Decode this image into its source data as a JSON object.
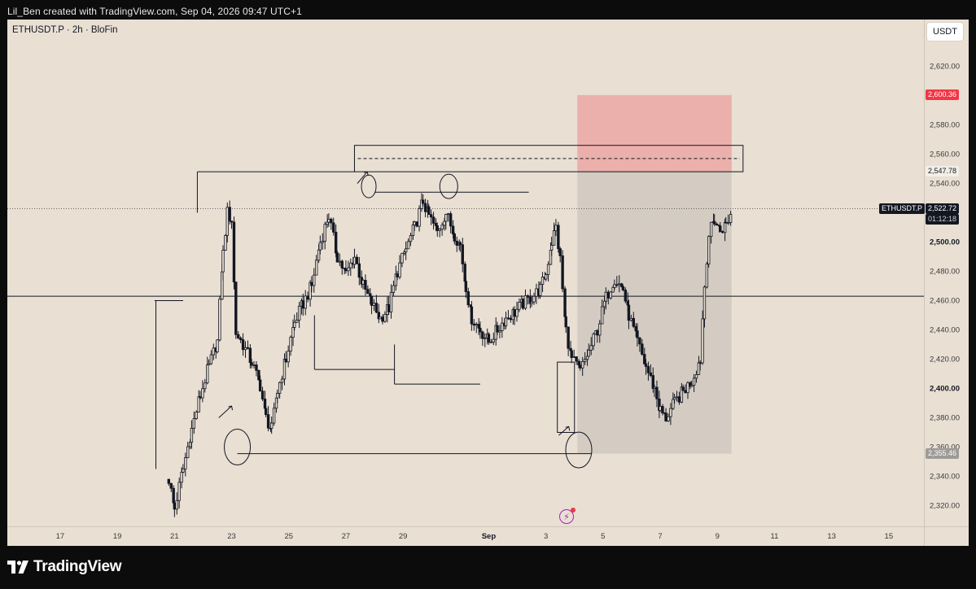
{
  "caption": "Lil_Ben created with TradingView.com, Sep 04, 2026 09:47 UTC+1",
  "symbol": "ETHUSDT.P · 2h · BloFin",
  "currency": "USDT",
  "brand": "TradingView",
  "colors": {
    "background": "#e9dfd3",
    "candle": "#131722",
    "stop_zone": "#f23645",
    "target_zone": "#9e9b97"
  },
  "icons": [
    "tradingview-logo-icon",
    "flash-icon"
  ],
  "chart_data": {
    "type": "candlestick",
    "title": "ETHUSDT.P · 2h · BloFin",
    "ylim": [
      2310,
      2642
    ],
    "y_ticks": [
      {
        "value": 2620,
        "label": "2,620.00"
      },
      {
        "value": 2580,
        "label": "2,580.00"
      },
      {
        "value": 2560,
        "label": "2,560.00"
      },
      {
        "value": 2540,
        "label": "2,540.00"
      },
      {
        "value": 2500,
        "label": "2,500.00",
        "bold": true
      },
      {
        "value": 2480,
        "label": "2,480.00"
      },
      {
        "value": 2460,
        "label": "2,460.00"
      },
      {
        "value": 2440,
        "label": "2,440.00"
      },
      {
        "value": 2420,
        "label": "2,420.00"
      },
      {
        "value": 2400,
        "label": "2,400.00",
        "bold": true
      },
      {
        "value": 2380,
        "label": "2,380.00"
      },
      {
        "value": 2360,
        "label": "2,360.00"
      },
      {
        "value": 2340,
        "label": "2,340.00"
      },
      {
        "value": 2320,
        "label": "2,320.00"
      }
    ],
    "x_ticks": [
      {
        "label": "17",
        "day": 17
      },
      {
        "label": "19",
        "day": 19
      },
      {
        "label": "21",
        "day": 21
      },
      {
        "label": "23",
        "day": 23
      },
      {
        "label": "25",
        "day": 25
      },
      {
        "label": "27",
        "day": 27
      },
      {
        "label": "29",
        "day": 29
      },
      {
        "label": "Sep",
        "day": 32,
        "bold": true
      },
      {
        "label": "3",
        "day": 34
      },
      {
        "label": "5",
        "day": 36
      },
      {
        "label": "7",
        "day": 38
      },
      {
        "label": "9",
        "day": 40
      },
      {
        "label": "11",
        "day": 42
      },
      {
        "label": "13",
        "day": 44
      },
      {
        "label": "15",
        "day": 46
      }
    ],
    "price_tags": {
      "stop": "2,600.36",
      "entry": "2,547.78",
      "target": "2,355.46",
      "last_symbol": "ETHUSDT.P",
      "last_price": "2,522.72",
      "countdown": "01:12:18"
    },
    "close_path": [
      [
        20.8,
        2338
      ],
      [
        21.0,
        2318
      ],
      [
        21.3,
        2345
      ],
      [
        21.6,
        2372
      ],
      [
        21.9,
        2395
      ],
      [
        22.2,
        2415
      ],
      [
        22.5,
        2432
      ],
      [
        22.7,
        2492
      ],
      [
        22.85,
        2520
      ],
      [
        23.0,
        2515
      ],
      [
        23.15,
        2438
      ],
      [
        23.4,
        2430
      ],
      [
        23.7,
        2418
      ],
      [
        24.0,
        2402
      ],
      [
        24.2,
        2380
      ],
      [
        24.4,
        2372
      ],
      [
        24.6,
        2398
      ],
      [
        24.9,
        2420
      ],
      [
        25.2,
        2445
      ],
      [
        25.5,
        2458
      ],
      [
        25.8,
        2470
      ],
      [
        26.1,
        2500
      ],
      [
        26.4,
        2518
      ],
      [
        26.7,
        2490
      ],
      [
        27.0,
        2478
      ],
      [
        27.3,
        2490
      ],
      [
        27.6,
        2470
      ],
      [
        27.9,
        2458
      ],
      [
        28.2,
        2448
      ],
      [
        28.5,
        2455
      ],
      [
        28.8,
        2480
      ],
      [
        29.1,
        2495
      ],
      [
        29.4,
        2510
      ],
      [
        29.7,
        2528
      ],
      [
        29.9,
        2518
      ],
      [
        30.2,
        2507
      ],
      [
        30.5,
        2520
      ],
      [
        30.8,
        2505
      ],
      [
        31.0,
        2498
      ],
      [
        31.2,
        2470
      ],
      [
        31.4,
        2448
      ],
      [
        31.7,
        2440
      ],
      [
        32.0,
        2432
      ],
      [
        32.3,
        2440
      ],
      [
        32.6,
        2448
      ],
      [
        32.9,
        2452
      ],
      [
        33.2,
        2458
      ],
      [
        33.5,
        2462
      ],
      [
        33.8,
        2468
      ],
      [
        34.0,
        2478
      ],
      [
        34.2,
        2500
      ],
      [
        34.35,
        2510
      ],
      [
        34.5,
        2488
      ],
      [
        34.7,
        2440
      ],
      [
        34.9,
        2420
      ],
      [
        35.2,
        2412
      ],
      [
        35.5,
        2425
      ],
      [
        35.8,
        2440
      ],
      [
        36.1,
        2462
      ],
      [
        36.4,
        2475
      ],
      [
        36.7,
        2468
      ],
      [
        36.9,
        2450
      ],
      [
        37.2,
        2432
      ],
      [
        37.5,
        2415
      ],
      [
        37.8,
        2400
      ],
      [
        38.0,
        2385
      ],
      [
        38.2,
        2380
      ],
      [
        38.5,
        2390
      ],
      [
        38.8,
        2398
      ],
      [
        39.1,
        2405
      ],
      [
        39.4,
        2420
      ],
      [
        39.55,
        2470
      ],
      [
        39.7,
        2505
      ],
      [
        39.9,
        2515
      ],
      [
        40.1,
        2508
      ],
      [
        40.3,
        2512
      ],
      [
        40.5,
        2520
      ]
    ],
    "annotations": [
      {
        "kind": "rect-outline",
        "x1": 27.3,
        "x2": 40.9,
        "y1": 2548,
        "y2": 2566,
        "dashed_mid": 2557
      },
      {
        "kind": "zone",
        "role": "stop",
        "x1": 35.1,
        "x2": 40.5,
        "y1": 2547.78,
        "y2": 2600.36
      },
      {
        "kind": "zone",
        "role": "target",
        "x1": 35.1,
        "x2": 40.5,
        "y1": 2355.46,
        "y2": 2547.78
      },
      {
        "kind": "hline",
        "y": 2463
      },
      {
        "kind": "hline",
        "y": 2522.72,
        "dotted": true
      },
      {
        "kind": "hline",
        "x1": 23.2,
        "x2": 35.6,
        "y": 2355.5
      },
      {
        "kind": "hline",
        "x1": 28.0,
        "x2": 33.4,
        "y": 2534
      },
      {
        "kind": "hline",
        "x1": 21.8,
        "x2": 27.3,
        "y": 2548
      },
      {
        "kind": "hline",
        "x1": 25.9,
        "x2": 28.7,
        "y": 2413
      },
      {
        "kind": "hline",
        "x1": 28.7,
        "x2": 31.7,
        "y": 2403
      },
      {
        "kind": "hline",
        "x1": 20.3,
        "x2": 21.3,
        "y": 2460
      }
    ],
    "grid": false,
    "legend": "none"
  }
}
